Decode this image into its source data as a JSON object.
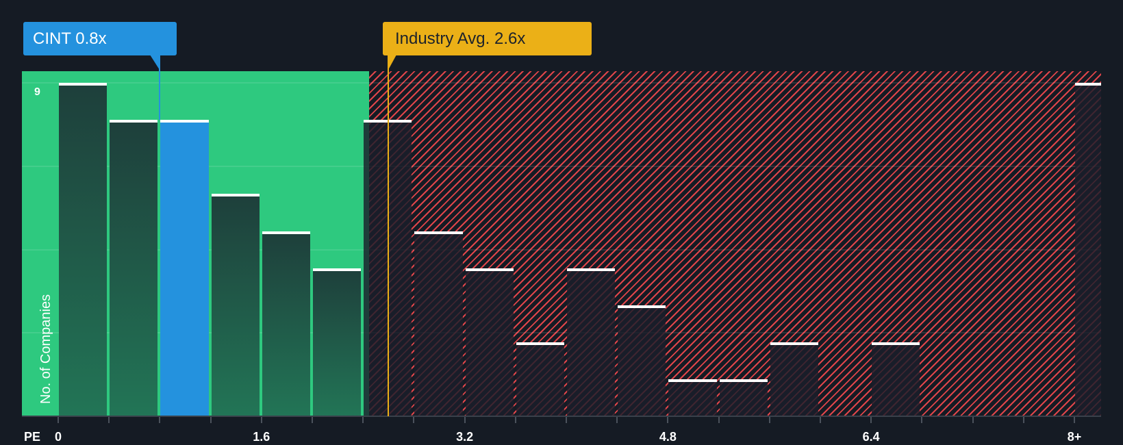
{
  "callouts": {
    "company": {
      "label": "CINT 0.8x",
      "value": 0.8,
      "color": "#2492de"
    },
    "industry": {
      "label": "Industry Avg. 2.6x",
      "value": 2.6,
      "color": "#ebb017"
    }
  },
  "axes": {
    "y_title": "No. of Companies",
    "y_max_label": "9",
    "x_title": "PE",
    "x_tick_labels": [
      "0",
      "1.6",
      "3.2",
      "4.8",
      "6.4",
      "8+"
    ]
  },
  "colors": {
    "background": "#151b24",
    "good_zone": "#2ec97f",
    "bad_zone_hatch": "#e0454a",
    "highlight_bar": "#2492de"
  },
  "chart_data": {
    "type": "bar",
    "title": "",
    "xlabel": "PE",
    "ylabel": "No. of Companies",
    "categories": [
      "0-0.4",
      "0.4-0.8",
      "0.8-1.2",
      "1.2-1.6",
      "1.6-2.0",
      "2.0-2.4",
      "2.4-2.8",
      "2.8-3.2",
      "3.2-3.6",
      "3.6-4.0",
      "4.0-4.4",
      "4.4-4.8",
      "4.8-5.2",
      "5.2-5.6",
      "5.6-6.0",
      "6.0-6.4",
      "6.4-6.8",
      "6.8-7.2",
      "7.2-7.6",
      "7.6-8.0",
      "8+"
    ],
    "values": [
      9,
      8,
      8,
      6,
      5,
      4,
      8,
      5,
      4,
      2,
      4,
      3,
      1,
      1,
      2,
      0,
      2,
      0,
      0,
      0,
      9
    ],
    "highlight_index": 2,
    "ylim": [
      0,
      9
    ],
    "x_ticks": [
      0,
      1.6,
      3.2,
      4.8,
      6.4,
      8
    ],
    "grid": true,
    "annotations": [
      {
        "text": "CINT 0.8x",
        "x": 0.8
      },
      {
        "text": "Industry Avg. 2.6x",
        "x": 2.6
      }
    ],
    "zones": [
      {
        "name": "below-industry",
        "from": 0,
        "to": 2.45,
        "color": "#2ec97f"
      },
      {
        "name": "above-industry",
        "from": 2.45,
        "to": 8.5,
        "color": "#e0454a"
      }
    ]
  }
}
